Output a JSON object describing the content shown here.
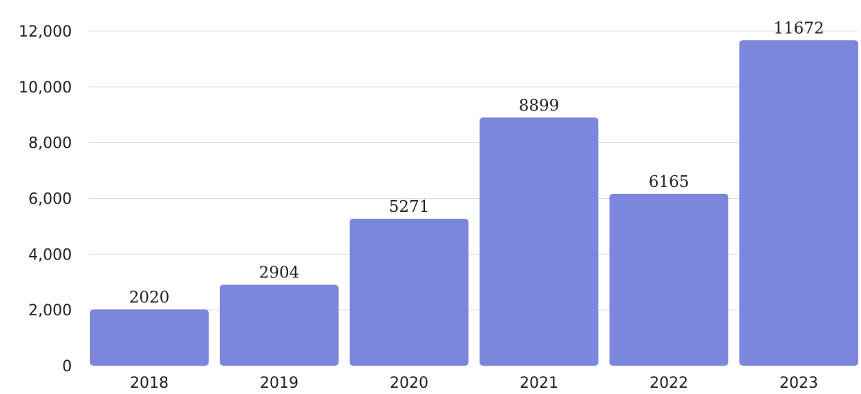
{
  "chart_data": {
    "type": "bar",
    "categories": [
      "2018",
      "2019",
      "2020",
      "2021",
      "2022",
      "2023"
    ],
    "values": [
      2020,
      2904,
      5271,
      8899,
      6165,
      11672
    ],
    "data_labels": [
      "2020",
      "2904",
      "5271",
      "8899",
      "6165",
      "11672"
    ],
    "title": "",
    "xlabel": "",
    "ylabel": "",
    "ylim": [
      0,
      12000
    ],
    "yticks": [
      0,
      2000,
      4000,
      6000,
      8000,
      10000,
      12000
    ],
    "ytick_labels": [
      "0",
      "2,000",
      "4,000",
      "6,000",
      "8,000",
      "10,000",
      "12,000"
    ],
    "grid": true,
    "legend": "none",
    "bar_color": "#7b86dc"
  }
}
